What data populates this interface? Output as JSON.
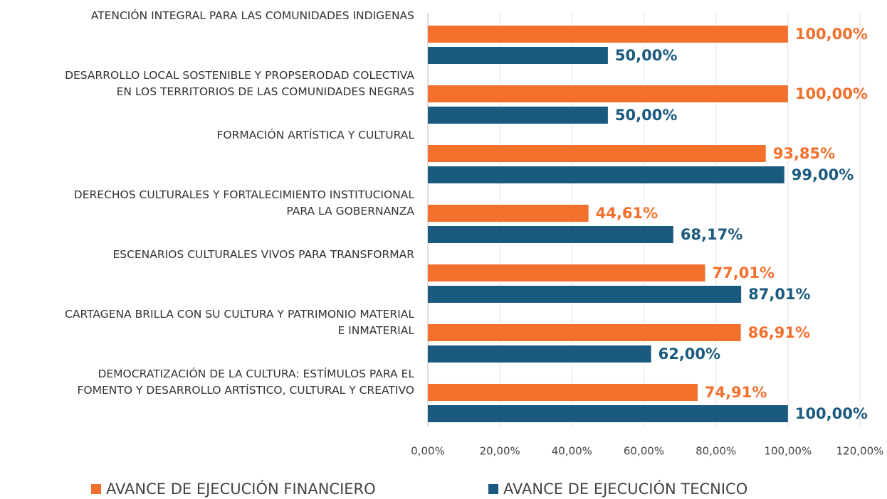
{
  "chart_data": {
    "type": "hbar",
    "categories": [
      "ATENCIÓN INTEGRAL PARA LAS COMUNIDADES INDIGENAS",
      "DESARROLLO LOCAL SOSTENIBLE Y PROPSERODAD COLECTIVA\nEN LOS TERRITORIOS DE LAS COMUNIDADES NEGRAS",
      "FORMACIÓN ARTÍSTICA Y CULTURAL",
      "DERECHOS CULTURALES Y FORTALECIMIENTO INSTITUCIONAL\nPARA LA GOBERNANZA",
      "ESCENARIOS CULTURALES VIVOS PARA TRANSFORMAR",
      "CARTAGENA BRILLA CON SU CULTURA Y PATRIMONIO MATERIAL\nE INMATERIAL",
      "DEMOCRATIZACIÓN DE LA CULTURA: ESTÍMULOS PARA EL\nFOMENTO Y DESARROLLO ARTÍSTICO, CULTURAL Y CREATIVO"
    ],
    "series": [
      {
        "name": "AVANCE DE EJECUCIÓN FINANCIERO",
        "color": "#f26f2c",
        "values": [
          100,
          100,
          93.85,
          44.61,
          77.01,
          86.91,
          74.91
        ],
        "value_labels": [
          "100,00%",
          "100,00%",
          "93,85%",
          "44,61%",
          "77,01%",
          "86,91%",
          "74,91%"
        ]
      },
      {
        "name": "AVANCE DE EJECUCIÓN TECNICO",
        "color": "#1b5a7f",
        "values": [
          50,
          50,
          99,
          68.17,
          87.01,
          62,
          100
        ],
        "value_labels": [
          "50,00%",
          "50,00%",
          "99,00%",
          "68,17%",
          "87,01%",
          "62,00%",
          "100,00%"
        ]
      }
    ],
    "xlim": [
      0,
      120
    ],
    "xticks": [
      {
        "value": 0,
        "label": "0,00%"
      },
      {
        "value": 20,
        "label": "20,00%"
      },
      {
        "value": 40,
        "label": "40,00%"
      },
      {
        "value": 60,
        "label": "60,00%"
      },
      {
        "value": 80,
        "label": "80,00%"
      },
      {
        "value": 100,
        "label": "100,00%"
      },
      {
        "value": 120,
        "label": "120,00%"
      }
    ],
    "grid": true,
    "legend": "bottom"
  }
}
